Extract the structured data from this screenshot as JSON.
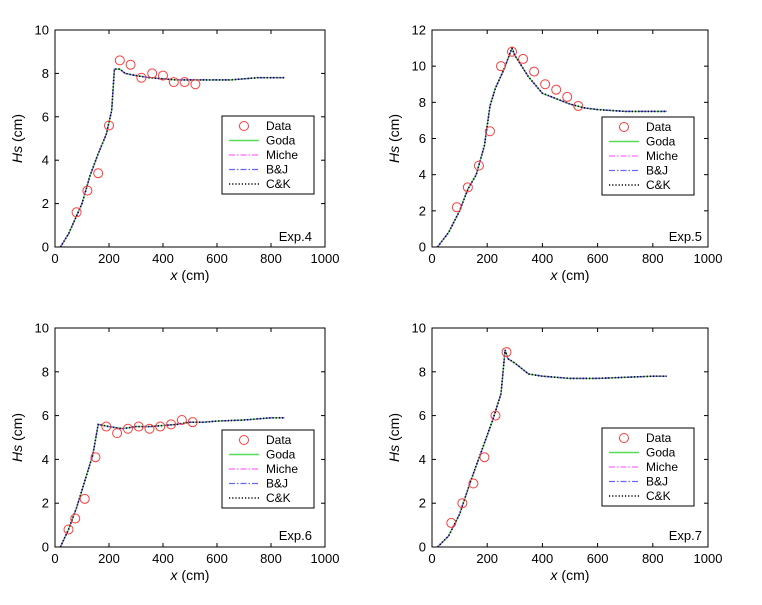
{
  "legend_labels": [
    "Data",
    "Goda",
    "Miche",
    "B&J",
    "C&K"
  ],
  "colors": {
    "data_marker": "#ff3b3b",
    "goda": "#55dd55",
    "miche": "#ff66ff",
    "bj": "#6666ff",
    "ck": "#000000"
  },
  "chart_data": [
    {
      "type": "line",
      "panel": "Exp.4",
      "xlabel_var": "x",
      "xlabel_unit": " (cm)",
      "ylabel_var": "Hs",
      "ylabel_unit": " (cm)",
      "xlim": [
        0,
        1000
      ],
      "ylim": [
        0,
        10
      ],
      "xticks": [
        0,
        200,
        400,
        600,
        800,
        1000
      ],
      "yticks": [
        0,
        2,
        4,
        6,
        8,
        10
      ],
      "grid": false,
      "legend_position": "right-middle",
      "series": [
        {
          "name": "Data",
          "style": "marker",
          "x": [
            80,
            120,
            160,
            200,
            240,
            280,
            320,
            360,
            400,
            440,
            480,
            520
          ],
          "y": [
            1.6,
            2.6,
            3.4,
            5.6,
            8.6,
            8.4,
            7.8,
            8.0,
            7.9,
            7.6,
            7.6,
            7.5
          ]
        },
        {
          "name": "Goda",
          "style": "solid",
          "x": [
            20,
            50,
            100,
            130,
            160,
            190,
            210,
            220,
            240,
            260,
            300,
            350,
            400,
            450,
            500,
            600,
            650,
            700,
            750,
            800,
            850
          ],
          "y": [
            0.0,
            0.6,
            2.0,
            3.3,
            4.3,
            5.2,
            6.3,
            8.2,
            8.2,
            8.0,
            7.9,
            7.8,
            7.75,
            7.7,
            7.7,
            7.7,
            7.7,
            7.75,
            7.8,
            7.8,
            7.8
          ]
        },
        {
          "name": "Miche",
          "style": "dashdot",
          "x": [
            20,
            50,
            100,
            130,
            160,
            190,
            210,
            220,
            240,
            260,
            300,
            350,
            400,
            450,
            500,
            600,
            650,
            700,
            750,
            800,
            850
          ],
          "y": [
            0.0,
            0.6,
            2.0,
            3.3,
            4.3,
            5.2,
            6.3,
            8.2,
            8.2,
            8.0,
            7.9,
            7.8,
            7.75,
            7.7,
            7.7,
            7.7,
            7.7,
            7.75,
            7.8,
            7.8,
            7.8
          ]
        },
        {
          "name": "B&J",
          "style": "dashdot",
          "x": [
            20,
            50,
            100,
            130,
            160,
            190,
            210,
            220,
            240,
            260,
            300,
            350,
            400,
            450,
            500,
            600,
            650,
            700,
            750,
            800,
            850
          ],
          "y": [
            0.0,
            0.6,
            2.0,
            3.3,
            4.3,
            5.2,
            6.3,
            8.2,
            8.2,
            8.0,
            7.9,
            7.8,
            7.75,
            7.7,
            7.7,
            7.7,
            7.7,
            7.75,
            7.8,
            7.8,
            7.8
          ]
        },
        {
          "name": "C&K",
          "style": "dotted",
          "x": [
            20,
            50,
            100,
            130,
            160,
            190,
            210,
            220,
            240,
            260,
            300,
            350,
            400,
            450,
            500,
            600,
            650,
            700,
            750,
            800,
            850
          ],
          "y": [
            0.0,
            0.6,
            2.0,
            3.3,
            4.3,
            5.2,
            6.3,
            8.2,
            8.2,
            8.0,
            7.9,
            7.8,
            7.75,
            7.7,
            7.7,
            7.7,
            7.7,
            7.75,
            7.8,
            7.8,
            7.8
          ]
        }
      ]
    },
    {
      "type": "line",
      "panel": "Exp.5",
      "xlabel_var": "x",
      "xlabel_unit": " (cm)",
      "ylabel_var": "Hs",
      "ylabel_unit": " (cm)",
      "xlim": [
        0,
        1000
      ],
      "ylim": [
        0,
        12
      ],
      "xticks": [
        0,
        200,
        400,
        600,
        800,
        1000
      ],
      "yticks": [
        0,
        2,
        4,
        6,
        8,
        10,
        12
      ],
      "grid": false,
      "legend_position": "right-middle",
      "series": [
        {
          "name": "Data",
          "style": "marker",
          "x": [
            90,
            130,
            170,
            210,
            250,
            290,
            330,
            370,
            410,
            450,
            490,
            530
          ],
          "y": [
            2.2,
            3.3,
            4.5,
            6.4,
            10.0,
            10.8,
            10.4,
            9.7,
            9.0,
            8.7,
            8.3,
            7.8
          ]
        },
        {
          "name": "Goda",
          "style": "solid",
          "x": [
            20,
            60,
            100,
            130,
            160,
            190,
            210,
            230,
            260,
            290,
            300,
            350,
            400,
            450,
            500,
            550,
            600,
            700,
            800,
            850
          ],
          "y": [
            0.0,
            0.8,
            2.0,
            3.2,
            4.0,
            5.6,
            7.8,
            8.8,
            9.8,
            11.0,
            10.6,
            9.4,
            8.5,
            8.2,
            7.9,
            7.7,
            7.6,
            7.5,
            7.5,
            7.5
          ]
        },
        {
          "name": "Miche",
          "style": "dashdot",
          "x": [
            20,
            60,
            100,
            130,
            160,
            190,
            210,
            230,
            260,
            290,
            300,
            350,
            400,
            450,
            500,
            550,
            600,
            700,
            800,
            850
          ],
          "y": [
            0.0,
            0.8,
            2.0,
            3.2,
            4.0,
            5.6,
            7.8,
            8.8,
            9.8,
            11.0,
            10.6,
            9.4,
            8.5,
            8.2,
            7.9,
            7.7,
            7.6,
            7.5,
            7.5,
            7.5
          ]
        },
        {
          "name": "B&J",
          "style": "dashdot",
          "x": [
            20,
            60,
            100,
            130,
            160,
            190,
            210,
            230,
            260,
            290,
            300,
            350,
            400,
            450,
            500,
            550,
            600,
            700,
            800,
            850
          ],
          "y": [
            0.0,
            0.8,
            2.0,
            3.2,
            4.0,
            5.6,
            7.8,
            8.8,
            9.8,
            11.0,
            10.6,
            9.4,
            8.5,
            8.2,
            7.9,
            7.7,
            7.6,
            7.5,
            7.5,
            7.5
          ]
        },
        {
          "name": "C&K",
          "style": "dotted",
          "x": [
            20,
            60,
            100,
            130,
            160,
            190,
            210,
            230,
            260,
            290,
            300,
            350,
            400,
            450,
            500,
            550,
            600,
            700,
            800,
            850
          ],
          "y": [
            0.0,
            0.8,
            2.0,
            3.2,
            4.0,
            5.6,
            7.8,
            8.8,
            9.8,
            11.0,
            10.6,
            9.4,
            8.5,
            8.2,
            7.9,
            7.7,
            7.6,
            7.5,
            7.5,
            7.5
          ]
        }
      ]
    },
    {
      "type": "line",
      "panel": "Exp.6",
      "xlabel_var": "x",
      "xlabel_unit": " (cm)",
      "ylabel_var": "Hs",
      "ylabel_unit": " (cm)",
      "xlim": [
        0,
        1000
      ],
      "ylim": [
        0,
        10
      ],
      "xticks": [
        0,
        200,
        400,
        600,
        800,
        1000
      ],
      "yticks": [
        0,
        2,
        4,
        6,
        8,
        10
      ],
      "grid": false,
      "legend_position": "right-middle",
      "series": [
        {
          "name": "Data",
          "style": "marker",
          "x": [
            50,
            75,
            110,
            150,
            190,
            230,
            270,
            310,
            350,
            390,
            430,
            470,
            510
          ],
          "y": [
            0.8,
            1.3,
            2.2,
            4.1,
            5.5,
            5.2,
            5.4,
            5.5,
            5.4,
            5.5,
            5.6,
            5.8,
            5.7
          ]
        },
        {
          "name": "Goda",
          "style": "solid",
          "x": [
            20,
            50,
            80,
            110,
            140,
            160,
            200,
            250,
            300,
            350,
            400,
            450,
            500,
            550,
            600,
            700,
            800,
            850
          ],
          "y": [
            0.0,
            0.8,
            1.8,
            3.0,
            4.2,
            5.6,
            5.5,
            5.4,
            5.5,
            5.5,
            5.55,
            5.6,
            5.7,
            5.7,
            5.75,
            5.8,
            5.9,
            5.9
          ]
        },
        {
          "name": "Miche",
          "style": "dashdot",
          "x": [
            20,
            50,
            80,
            110,
            140,
            160,
            200,
            250,
            300,
            350,
            400,
            450,
            500,
            550,
            600,
            700,
            800,
            850
          ],
          "y": [
            0.0,
            0.8,
            1.8,
            3.0,
            4.2,
            5.6,
            5.5,
            5.4,
            5.5,
            5.5,
            5.55,
            5.6,
            5.7,
            5.7,
            5.75,
            5.8,
            5.9,
            5.9
          ]
        },
        {
          "name": "B&J",
          "style": "dashdot",
          "x": [
            20,
            50,
            80,
            110,
            140,
            160,
            200,
            250,
            300,
            350,
            400,
            450,
            500,
            550,
            600,
            700,
            800,
            850
          ],
          "y": [
            0.0,
            0.8,
            1.8,
            3.0,
            4.2,
            5.6,
            5.5,
            5.4,
            5.5,
            5.5,
            5.55,
            5.6,
            5.7,
            5.7,
            5.75,
            5.8,
            5.9,
            5.9
          ]
        },
        {
          "name": "C&K",
          "style": "dotted",
          "x": [
            20,
            50,
            80,
            110,
            140,
            160,
            200,
            250,
            300,
            350,
            400,
            450,
            500,
            550,
            600,
            700,
            800,
            850
          ],
          "y": [
            0.0,
            0.8,
            1.8,
            3.0,
            4.2,
            5.6,
            5.5,
            5.4,
            5.5,
            5.5,
            5.55,
            5.6,
            5.7,
            5.7,
            5.75,
            5.8,
            5.9,
            5.9
          ]
        }
      ]
    },
    {
      "type": "line",
      "panel": "Exp.7",
      "xlabel_var": "x",
      "xlabel_unit": " (cm)",
      "ylabel_var": "Hs",
      "ylabel_unit": " (cm)",
      "xlim": [
        0,
        1000
      ],
      "ylim": [
        0,
        10
      ],
      "xticks": [
        0,
        200,
        400,
        600,
        800,
        1000
      ],
      "yticks": [
        0,
        2,
        4,
        6,
        8,
        10
      ],
      "grid": false,
      "legend_position": "right-lower",
      "series": [
        {
          "name": "Data",
          "style": "marker",
          "x": [
            70,
            110,
            150,
            190,
            230,
            270
          ],
          "y": [
            1.1,
            2.0,
            2.9,
            4.1,
            6.0,
            8.9
          ]
        },
        {
          "name": "Goda",
          "style": "solid",
          "x": [
            20,
            60,
            100,
            140,
            180,
            220,
            250,
            265,
            275,
            300,
            330,
            350,
            400,
            450,
            500,
            550,
            600,
            700,
            800,
            850
          ],
          "y": [
            0.0,
            0.5,
            1.5,
            3.0,
            4.4,
            5.8,
            7.0,
            9.0,
            8.6,
            8.4,
            8.1,
            7.9,
            7.8,
            7.75,
            7.7,
            7.7,
            7.7,
            7.75,
            7.8,
            7.8
          ]
        },
        {
          "name": "Miche",
          "style": "dashdot",
          "x": [
            20,
            60,
            100,
            140,
            180,
            220,
            250,
            265,
            275,
            300,
            330,
            350,
            400,
            450,
            500,
            550,
            600,
            700,
            800,
            850
          ],
          "y": [
            0.0,
            0.5,
            1.5,
            3.0,
            4.4,
            5.8,
            7.0,
            9.0,
            8.6,
            8.4,
            8.1,
            7.9,
            7.8,
            7.75,
            7.7,
            7.7,
            7.7,
            7.75,
            7.8,
            7.8
          ]
        },
        {
          "name": "B&J",
          "style": "dashdot",
          "x": [
            20,
            60,
            100,
            140,
            180,
            220,
            250,
            265,
            275,
            300,
            330,
            350,
            400,
            450,
            500,
            550,
            600,
            700,
            800,
            850
          ],
          "y": [
            0.0,
            0.5,
            1.5,
            3.0,
            4.4,
            5.8,
            7.0,
            9.0,
            8.6,
            8.4,
            8.1,
            7.9,
            7.8,
            7.75,
            7.7,
            7.7,
            7.7,
            7.75,
            7.8,
            7.8
          ]
        },
        {
          "name": "C&K",
          "style": "dotted",
          "x": [
            20,
            60,
            100,
            140,
            180,
            220,
            250,
            265,
            275,
            300,
            330,
            350,
            400,
            450,
            500,
            550,
            600,
            700,
            800,
            850
          ],
          "y": [
            0.0,
            0.5,
            1.5,
            3.0,
            4.4,
            5.8,
            7.0,
            9.0,
            8.6,
            8.4,
            8.1,
            7.9,
            7.8,
            7.75,
            7.7,
            7.7,
            7.7,
            7.75,
            7.8,
            7.8
          ]
        }
      ]
    }
  ]
}
